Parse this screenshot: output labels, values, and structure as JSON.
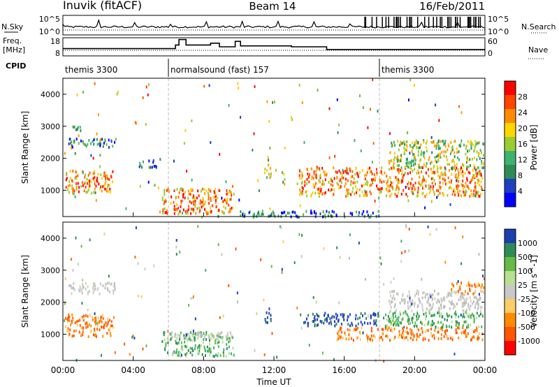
{
  "header": {
    "station": "Inuvik (fitACF)",
    "beam": "Beam 14",
    "date": "16/Feb/2011"
  },
  "status_panels": {
    "nsky_label": "N.Sky",
    "nsearch_label": "N.Search",
    "nsky_ticks": [
      "10^5",
      "10^0"
    ],
    "nsearch_ticks": [
      "10^5",
      "10^0"
    ],
    "freq_label": "Freq.",
    "freq_unit": "[MHz]",
    "freq_ticks": [
      "18",
      "8"
    ],
    "nave_label": "Nave",
    "nave_ticks": [
      "60",
      "0"
    ],
    "cpid_label": "CPID",
    "cpid_segments": [
      {
        "label": "themis 3300",
        "start_h": 0,
        "end_h": 6
      },
      {
        "label": "normalsound (fast) 157",
        "start_h": 6,
        "end_h": 18
      },
      {
        "label": "themis 3300",
        "start_h": 18,
        "end_h": 24
      }
    ],
    "freq_steps": [
      {
        "start_h": 0,
        "end_h": 6.4,
        "mhz": 12
      },
      {
        "start_h": 6.4,
        "end_h": 6.6,
        "mhz": 14
      },
      {
        "start_h": 6.6,
        "end_h": 7.0,
        "mhz": 17
      },
      {
        "start_h": 7.0,
        "end_h": 8.4,
        "mhz": 14
      },
      {
        "start_h": 8.4,
        "end_h": 8.9,
        "mhz": 15
      },
      {
        "start_h": 8.9,
        "end_h": 9.8,
        "mhz": 13
      },
      {
        "start_h": 9.8,
        "end_h": 10.1,
        "mhz": 16
      },
      {
        "start_h": 10.1,
        "end_h": 13.0,
        "mhz": 13.5
      },
      {
        "start_h": 13.0,
        "end_h": 15.0,
        "mhz": 13
      },
      {
        "start_h": 15.0,
        "end_h": 24,
        "mhz": 11.5
      }
    ]
  },
  "chart_data": [
    {
      "type": "heatmap",
      "title": "Power",
      "xlabel": "Time UT",
      "ylabel": "Slant Range [km]",
      "x_ticks": [
        "00:00",
        "04:00",
        "08:00",
        "12:00",
        "16:00",
        "20:00",
        "00:00"
      ],
      "xlim_hours": [
        0,
        24
      ],
      "ylim": [
        180,
        4500
      ],
      "y_ticks": [
        1000,
        2000,
        3000,
        4000
      ],
      "colorbar": {
        "label": "Power [dB]",
        "ticks": [
          "28",
          "24",
          "20",
          "16",
          "12",
          "8",
          "4"
        ],
        "colors": [
          "#ff0000",
          "#ff4500",
          "#ff8c00",
          "#ffd700",
          "#9acd32",
          "#3cb371",
          "#2e8b57",
          "#1e40c0",
          "#0000ff"
        ]
      },
      "regions": [
        {
          "t0": 0.1,
          "t1": 2.9,
          "r0": 950,
          "r1": 1650,
          "level": "high"
        },
        {
          "t0": 0.3,
          "t1": 3.0,
          "r0": 2350,
          "r1": 2650,
          "level": "low"
        },
        {
          "t0": 0.4,
          "t1": 1.2,
          "r0": 2900,
          "r1": 3100,
          "level": "low"
        },
        {
          "t0": 4.3,
          "t1": 5.4,
          "r0": 1750,
          "r1": 2000,
          "level": "low"
        },
        {
          "t0": 5.6,
          "t1": 9.7,
          "r0": 300,
          "r1": 1100,
          "level": "high"
        },
        {
          "t0": 11.4,
          "t1": 11.8,
          "r0": 1400,
          "r1": 1850,
          "level": "mid"
        },
        {
          "t0": 12.4,
          "t1": 12.6,
          "r0": 1200,
          "r1": 1700,
          "level": "mid"
        },
        {
          "t0": 13.4,
          "t1": 23.9,
          "r0": 850,
          "r1": 1750,
          "level": "high"
        },
        {
          "t0": 18.5,
          "t1": 23.9,
          "r0": 1700,
          "r1": 2600,
          "level": "mid"
        },
        {
          "t0": 10.0,
          "t1": 18.0,
          "r0": 200,
          "r1": 400,
          "level": "low"
        }
      ]
    },
    {
      "type": "heatmap",
      "title": "Velocity",
      "xlabel": "Time UT",
      "ylabel": "Slant Range [km]",
      "x_ticks": [
        "00:00",
        "04:00",
        "08:00",
        "12:00",
        "16:00",
        "20:00",
        "00:00"
      ],
      "xlim_hours": [
        0,
        24
      ],
      "ylim": [
        180,
        4500
      ],
      "y_ticks": [
        1000,
        2000,
        3000,
        4000
      ],
      "colorbar": {
        "label": "Velocity [m s^-1]",
        "ticks": [
          "1000",
          "500",
          "100",
          "25",
          "-25",
          "-100",
          "-500",
          "-1000"
        ],
        "colors": [
          "#1b3fb0",
          "#2e8b57",
          "#66bb44",
          "#b8e090",
          "#c8c8c8",
          "#ffcc66",
          "#ff8c00",
          "#ff5500",
          "#ff0000"
        ]
      },
      "regions": [
        {
          "t0": 0.1,
          "t1": 2.9,
          "r0": 950,
          "r1": 1650,
          "sign": "neg"
        },
        {
          "t0": 0.3,
          "t1": 3.0,
          "r0": 2300,
          "r1": 2650,
          "sign": "zero"
        },
        {
          "t0": 5.6,
          "t1": 9.7,
          "r0": 350,
          "r1": 1100,
          "sign": "pos"
        },
        {
          "t0": 6.0,
          "t1": 9.7,
          "r0": 900,
          "r1": 1100,
          "sign": "zero"
        },
        {
          "t0": 11.4,
          "t1": 11.8,
          "r0": 1400,
          "r1": 1850,
          "sign": "pos_strong"
        },
        {
          "t0": 13.4,
          "t1": 18.0,
          "r0": 1300,
          "r1": 1700,
          "sign": "pos_strong"
        },
        {
          "t0": 15.5,
          "t1": 23.9,
          "r0": 850,
          "r1": 1250,
          "sign": "neg"
        },
        {
          "t0": 18.2,
          "t1": 23.9,
          "r0": 1250,
          "r1": 1750,
          "sign": "pos"
        },
        {
          "t0": 18.5,
          "t1": 23.9,
          "r0": 1750,
          "r1": 2400,
          "sign": "zero"
        },
        {
          "t0": 22.0,
          "t1": 23.9,
          "r0": 2300,
          "r1": 2650,
          "sign": "neg"
        }
      ]
    }
  ]
}
